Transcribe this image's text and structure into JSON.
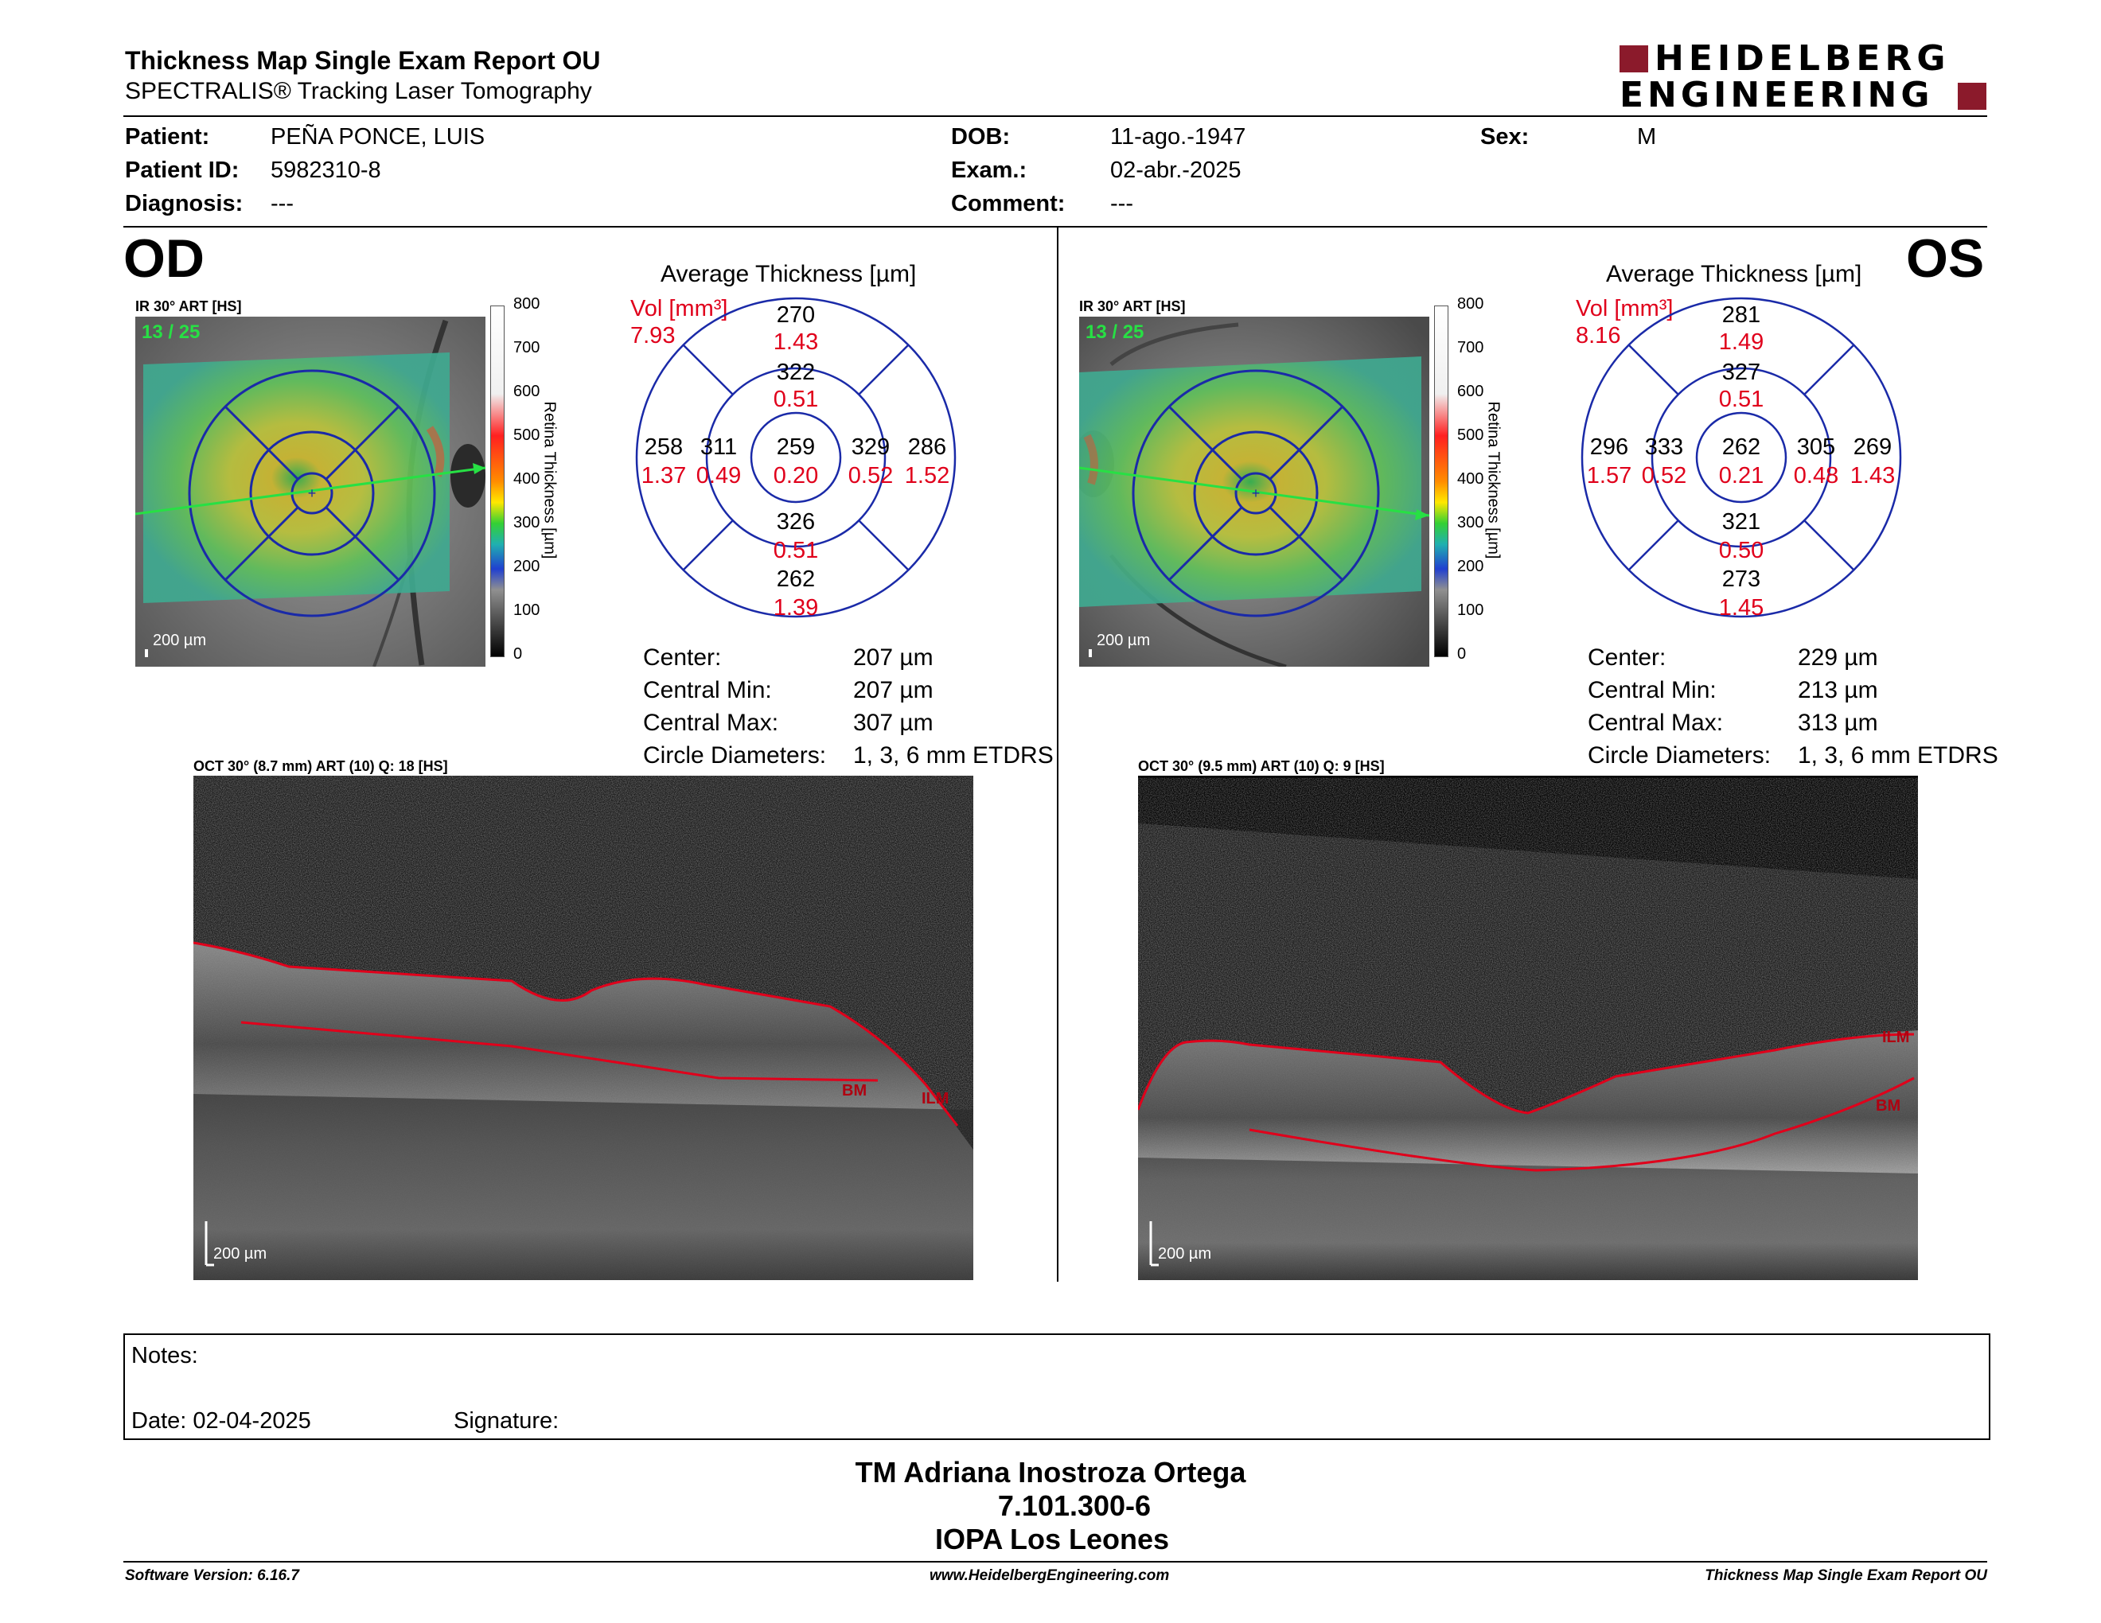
{
  "header": {
    "title": "Thickness Map Single Exam Report OU",
    "subtitle": "SPECTRALIS® Tracking Laser Tomography",
    "logo_line1": "HEIDELBERG",
    "logo_line2": "ENGINEERING"
  },
  "patient": {
    "patient_label": "Patient:",
    "patient_value": "PEÑA PONCE, LUIS",
    "id_label": "Patient ID:",
    "id_value": "5982310-8",
    "diagnosis_label": "Diagnosis:",
    "diagnosis_value": "---",
    "dob_label": "DOB:",
    "dob_value": "11-ago.-1947",
    "exam_label": "Exam.:",
    "exam_value": "02-abr.-2025",
    "comment_label": "Comment:",
    "comment_value": "---",
    "sex_label": "Sex:",
    "sex_value": "M"
  },
  "od": {
    "eye": "OD",
    "fundus_caption": "IR 30° ART [HS]",
    "frame_count": "13 / 25",
    "scale": "200 µm",
    "colorbar_label": "Retina Thickness [µm]",
    "colorbar_ticks": [
      "800",
      "700",
      "600",
      "500",
      "400",
      "300",
      "200",
      "100",
      "0"
    ],
    "avg_title": "Average Thickness [µm]",
    "vol_label": "Vol [mm³]",
    "vol_value": "7.93",
    "center": {
      "t": "259",
      "v": "0.20"
    },
    "inner": {
      "sup": {
        "t": "322",
        "v": "0.51"
      },
      "inf": {
        "t": "326",
        "v": "0.51"
      },
      "nasal": {
        "t": "329",
        "v": "0.52"
      },
      "temp": {
        "t": "311",
        "v": "0.49"
      }
    },
    "outer": {
      "sup": {
        "t": "270",
        "v": "1.43"
      },
      "inf": {
        "t": "262",
        "v": "1.39"
      },
      "nasal": {
        "t": "286",
        "v": "1.52"
      },
      "temp": {
        "t": "258",
        "v": "1.37"
      }
    },
    "stats": [
      {
        "label": "Center:",
        "value": "207 µm"
      },
      {
        "label": "Central Min:",
        "value": "207 µm"
      },
      {
        "label": "Central Max:",
        "value": "307 µm"
      },
      {
        "label": "Circle Diameters:",
        "value": "1, 3, 6 mm ETDRS"
      }
    ],
    "oct_caption": "OCT 30° (8.7 mm) ART (10) Q: 18 [HS]",
    "oct_scale": "200 µm",
    "bm_label": "BM",
    "ilm_label": "ILM"
  },
  "os": {
    "eye": "OS",
    "fundus_caption": "IR 30° ART [HS]",
    "frame_count": "13 / 25",
    "scale": "200 µm",
    "colorbar_label": "Retina Thickness [µm]",
    "colorbar_ticks": [
      "800",
      "700",
      "600",
      "500",
      "400",
      "300",
      "200",
      "100",
      "0"
    ],
    "avg_title": "Average Thickness [µm]",
    "vol_label": "Vol [mm³]",
    "vol_value": "8.16",
    "center": {
      "t": "262",
      "v": "0.21"
    },
    "inner": {
      "sup": {
        "t": "327",
        "v": "0.51"
      },
      "inf": {
        "t": "321",
        "v": "0.50"
      },
      "nasal": {
        "t": "333",
        "v": "0.52"
      },
      "temp": {
        "t": "305",
        "v": "0.48"
      }
    },
    "outer": {
      "sup": {
        "t": "281",
        "v": "1.49"
      },
      "inf": {
        "t": "273",
        "v": "1.45"
      },
      "nasal": {
        "t": "296",
        "v": "1.57"
      },
      "temp": {
        "t": "269",
        "v": "1.43"
      }
    },
    "stats": [
      {
        "label": "Center:",
        "value": "229 µm"
      },
      {
        "label": "Central Min:",
        "value": "213 µm"
      },
      {
        "label": "Central Max:",
        "value": "313 µm"
      },
      {
        "label": "Circle Diameters:",
        "value": "1, 3, 6 mm ETDRS"
      }
    ],
    "oct_caption": "OCT 30° (9.5 mm) ART (10) Q: 9 [HS]",
    "oct_scale": "200 µm",
    "bm_label": "BM",
    "ilm_label": "ILM"
  },
  "notes": {
    "notes_label": "Notes:",
    "date_label": "Date: 02-04-2025",
    "signature_label": "Signature:"
  },
  "signature": {
    "name": "TM Adriana Inostroza Ortega",
    "id": "7.101.300-6",
    "institution": "IOPA Los Leones"
  },
  "footer": {
    "software": "Software Version: 6.16.7",
    "website": "www.HeidelbergEngineering.com",
    "report": "Thickness Map Single Exam Report OU"
  },
  "colors": {
    "accent_red": "#8b1a2b",
    "vol_red": "#e0001b",
    "grid_blue": "#1a2aa8"
  }
}
